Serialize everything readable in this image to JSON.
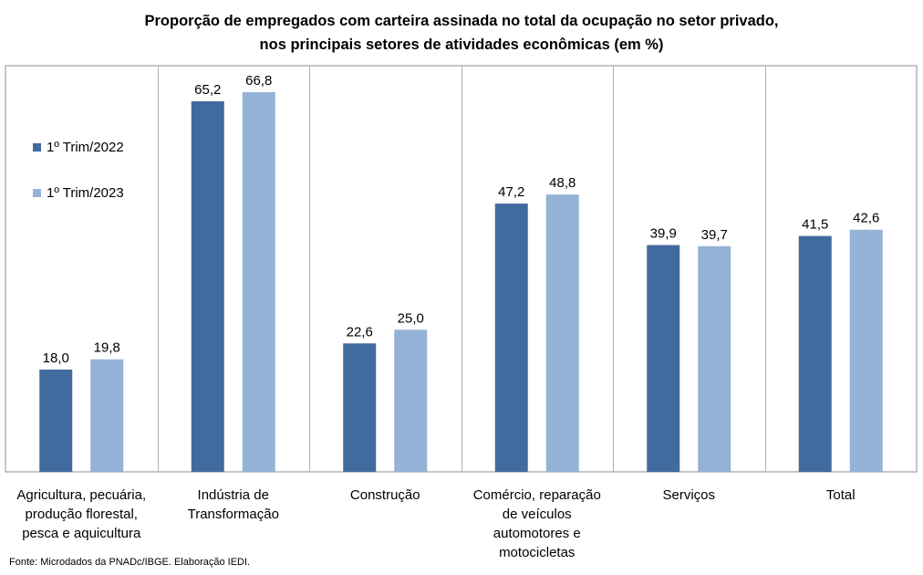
{
  "chart_data": {
    "type": "bar",
    "title": "Proporção  de empregados  com carteira assinada  no total da ocupação no setor privado,",
    "subtitle": "nos principais  setores de atividades  econômicas  (em %)",
    "categories": [
      [
        "Agricultura, pecuária,",
        "produção florestal,",
        "pesca e aquicultura"
      ],
      [
        "Indústria de",
        "Transformação"
      ],
      [
        "Construção"
      ],
      [
        "Comércio, reparação",
        "de veículos",
        "automotores e",
        "motocicletas"
      ],
      [
        "Serviços"
      ],
      [
        "Total"
      ]
    ],
    "series": [
      {
        "name": "1º Trim/2022",
        "color": "#416a9e",
        "values": [
          18.0,
          65.2,
          22.6,
          47.2,
          39.9,
          41.5
        ],
        "labels": [
          "18,0",
          "65,2",
          "22,6",
          "47,2",
          "39,9",
          "41,5"
        ]
      },
      {
        "name": "1º Trim/2023",
        "color": "#95b2d7",
        "values": [
          19.8,
          66.8,
          25.0,
          48.8,
          39.7,
          42.6
        ],
        "labels": [
          "19,8",
          "66,8",
          "25,0",
          "48,8",
          "39,7",
          "42,6"
        ]
      }
    ],
    "ylim": [
      0,
      75
    ],
    "grid": false,
    "legend_position": "top-left",
    "xlabel": "",
    "ylabel": ""
  },
  "source": "Fonte: Microdados da PNADc/IBGE. Elaboração IEDI.",
  "colors": {
    "border": "#8c8c8c",
    "divider": "#b0b0b0"
  }
}
